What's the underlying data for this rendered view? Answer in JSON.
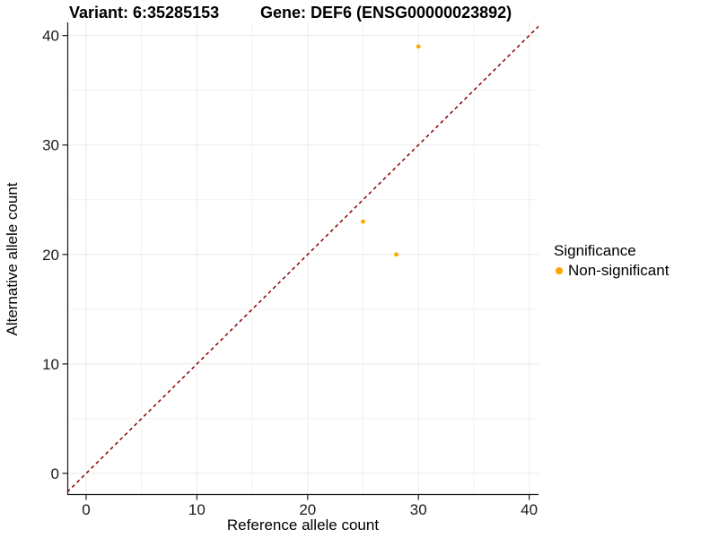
{
  "titles": {
    "variant": "Variant: 6:35285153",
    "gene": "Gene: DEF6 (ENSG00000023892)"
  },
  "axes": {
    "x_label": "Reference allele count",
    "y_label": "Alternative allele count"
  },
  "legend": {
    "title": "Significance",
    "items": [
      {
        "label": "Non-significant",
        "color": "#FFA500"
      }
    ]
  },
  "chart_data": {
    "type": "scatter",
    "title": "Variant: 6:35285153 | Gene: DEF6 (ENSG00000023892)",
    "xlabel": "Reference allele count",
    "ylabel": "Alternative allele count",
    "xlim": [
      -1.7,
      40.84
    ],
    "ylim": [
      -1.97,
      41.2
    ],
    "x_ticks": [
      0,
      10,
      20,
      30,
      40
    ],
    "y_ticks": [
      0,
      10,
      20,
      30,
      40
    ],
    "x_minor_ticks": [
      5,
      15,
      25,
      35
    ],
    "y_minor_ticks": [
      5,
      15,
      25,
      35
    ],
    "grid": true,
    "legend_position": "right",
    "series": [
      {
        "name": "Non-significant",
        "color": "#FFA500",
        "points": [
          {
            "x": 30,
            "y": 39
          },
          {
            "x": 25,
            "y": 23
          },
          {
            "x": 28,
            "y": 20
          }
        ]
      }
    ],
    "reference_line": {
      "equation": "y = x",
      "style": "dashed",
      "color": "#8B0000"
    },
    "colors": {
      "grid_major": "#EBEBEB",
      "grid_minor": "#F2F2F2",
      "axis": "#1A1A1A",
      "background": "#FFFFFF"
    }
  }
}
